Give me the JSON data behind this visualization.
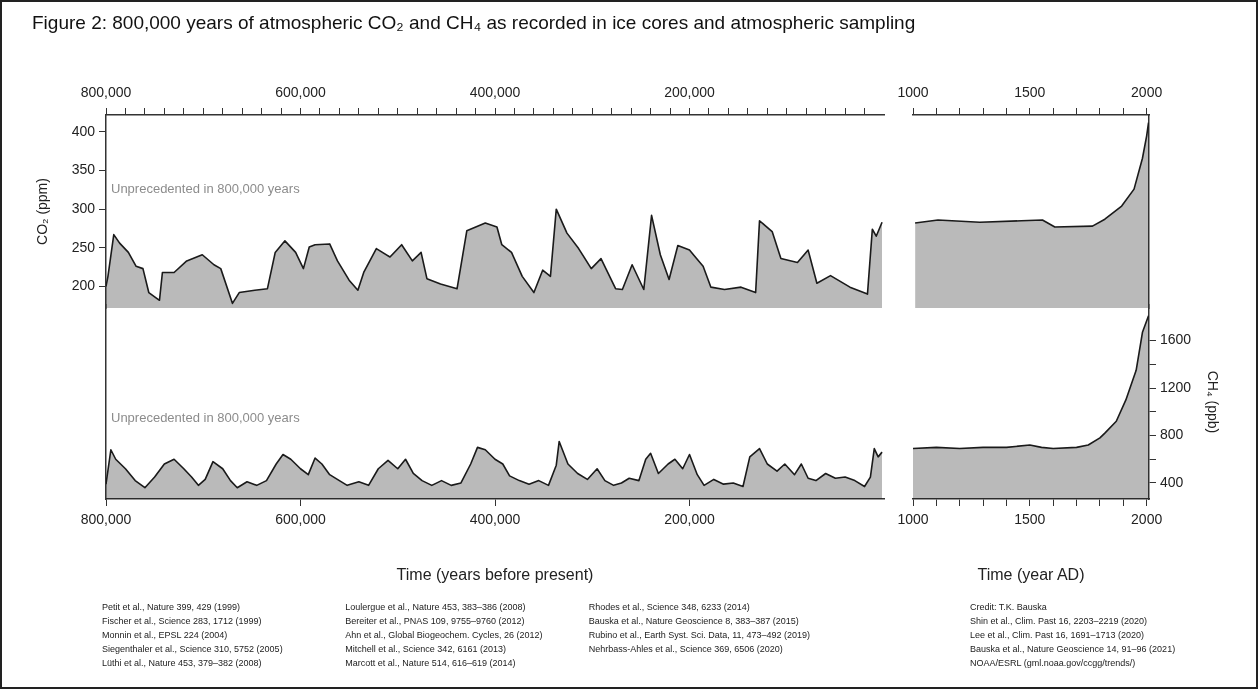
{
  "chart_data": [
    {
      "type": "area",
      "title": "Figure 2: 800,000 years of atmospheric CO₂ and CH₄ as recorded in ice cores and atmospheric sampling",
      "ylabel": "CO₂ (ppm)",
      "xlim": [
        800000,
        0
      ],
      "ylim": [
        172,
        422
      ],
      "xticks": [
        {
          "value": 800000,
          "label": "800,000"
        },
        {
          "value": 780000,
          "label": null
        },
        {
          "value": 760000,
          "label": null
        },
        {
          "value": 740000,
          "label": null
        },
        {
          "value": 720000,
          "label": null
        },
        {
          "value": 700000,
          "label": null
        },
        {
          "value": 680000,
          "label": null
        },
        {
          "value": 660000,
          "label": null
        },
        {
          "value": 640000,
          "label": null
        },
        {
          "value": 620000,
          "label": null
        },
        {
          "value": 600000,
          "label": "600,000"
        },
        {
          "value": 580000,
          "label": null
        },
        {
          "value": 560000,
          "label": null
        },
        {
          "value": 540000,
          "label": null
        },
        {
          "value": 520000,
          "label": null
        },
        {
          "value": 500000,
          "label": null
        },
        {
          "value": 480000,
          "label": null
        },
        {
          "value": 460000,
          "label": null
        },
        {
          "value": 440000,
          "label": null
        },
        {
          "value": 420000,
          "label": null
        },
        {
          "value": 400000,
          "label": "400,000"
        },
        {
          "value": 380000,
          "label": null
        },
        {
          "value": 360000,
          "label": null
        },
        {
          "value": 340000,
          "label": null
        },
        {
          "value": 320000,
          "label": null
        },
        {
          "value": 300000,
          "label": null
        },
        {
          "value": 280000,
          "label": null
        },
        {
          "value": 260000,
          "label": null
        },
        {
          "value": 240000,
          "label": null
        },
        {
          "value": 220000,
          "label": null
        },
        {
          "value": 200000,
          "label": "200,000"
        },
        {
          "value": 180000,
          "label": null
        },
        {
          "value": 160000,
          "label": null
        },
        {
          "value": 140000,
          "label": null
        },
        {
          "value": 120000,
          "label": null
        },
        {
          "value": 100000,
          "label": null
        },
        {
          "value": 80000,
          "label": null
        },
        {
          "value": 60000,
          "label": null
        },
        {
          "value": 40000,
          "label": null
        },
        {
          "value": 20000,
          "label": null
        }
      ],
      "yticks": [
        200,
        250,
        300,
        350,
        400
      ],
      "annotations": [
        "Unprecedented in 800,000 years"
      ],
      "series": [
        {
          "color": "#1a1a1a",
          "x": [
            800000,
            798000,
            792000,
            786000,
            777000,
            769000,
            762000,
            756000,
            745000,
            742000,
            730000,
            717000,
            701000,
            689000,
            682000,
            670000,
            663000,
            647000,
            634000,
            626000,
            616000,
            605000,
            597000,
            591000,
            585000,
            570000,
            562000,
            550000,
            541000,
            535000,
            522000,
            508000,
            496000,
            485000,
            476000,
            470000,
            456000,
            439000,
            429000,
            410000,
            398000,
            393000,
            383000,
            372000,
            360000,
            351000,
            343000,
            337000,
            326000,
            314000,
            301000,
            291000,
            276000,
            269000,
            259000,
            247000,
            239000,
            230000,
            221000,
            212000,
            200000,
            186000,
            178000,
            164000,
            147000,
            132000,
            128000,
            115000,
            106000,
            89000,
            78000,
            69000,
            55000,
            35000,
            17000,
            12000,
            8000,
            2000
          ],
          "values": [
            200,
            213,
            267,
            256,
            244,
            226,
            223,
            192,
            182,
            218,
            218,
            233,
            241,
            228,
            223,
            178,
            192,
            195,
            197,
            244,
            259,
            244,
            223,
            251,
            254,
            255,
            233,
            208,
            195,
            218,
            249,
            238,
            254,
            233,
            244,
            210,
            203,
            197,
            272,
            282,
            277,
            254,
            244,
            213,
            192,
            221,
            213,
            300,
            269,
            249,
            223,
            236,
            197,
            196,
            228,
            196,
            292,
            241,
            209,
            253,
            247,
            226,
            199,
            196,
            199,
            192,
            285,
            271,
            236,
            231,
            247,
            204,
            214,
            199,
            190,
            274,
            265,
            283
          ]
        }
      ]
    },
    {
      "type": "area",
      "tick_labels": "x",
      "xlim": [
        1000,
        2010
      ],
      "ylim": [
        172,
        422
      ],
      "xticks": [
        1000,
        {
          "value": 1100,
          "label": null
        },
        {
          "value": 1200,
          "label": null
        },
        {
          "value": 1300,
          "label": null
        },
        {
          "value": 1400,
          "label": null
        },
        1500,
        {
          "value": 1600,
          "label": null
        },
        {
          "value": 1700,
          "label": null
        },
        {
          "value": 1800,
          "label": null
        },
        {
          "value": 1900,
          "label": null
        },
        2000
      ],
      "series": [
        {
          "color": "#1a1a1a",
          "x": [
            1009,
            1107,
            1286,
            1464,
            1554,
            1607,
            1768,
            1821,
            1893,
            1946,
            1982,
            2000,
            2008
          ],
          "values": [
            282,
            286,
            283,
            285,
            286,
            277,
            278,
            287,
            304,
            326,
            366,
            395,
            412
          ]
        }
      ]
    },
    {
      "type": "area",
      "tick_labels": "x",
      "xlabel": "Time (years before present)",
      "xlim": [
        800000,
        0
      ],
      "ylim": [
        265,
        1900
      ],
      "xticks": [
        {
          "value": 800000,
          "label": "800,000"
        },
        {
          "value": 600000,
          "label": "600,000"
        },
        {
          "value": 400000,
          "label": "400,000"
        },
        {
          "value": 200000,
          "label": "200,000"
        }
      ],
      "annotations": [
        "Unprecedented in 800,000 years",
        "Petit et al., Nature 399, 429 (1999)",
        "Fischer et al., Science 283, 1712 (1999)",
        "Monnin et al., EPSL 224 (2004)",
        "Siegenthaler et al., Science 310, 5752 (2005)",
        "Lüthi et al., Nature 453, 379–382 (2008)",
        "Loulergue et al., Nature 453, 383–386 (2008)",
        "Bereiter et al., PNAS 109, 9755–9760 (2012)",
        "Ahn et al., Global Biogeochem. Cycles, 26 (2012)",
        "Mitchell et al., Science 342, 6161 (2013)",
        "Marcott et al., Nature 514, 616–619 (2014)",
        "Rhodes et al., Science 348, 6233 (2014)",
        "Bauska et al., Nature Geoscience 8, 383–387 (2015)",
        "Rubino et al., Earth Syst. Sci. Data, 11, 473–492 (2019)",
        "Nehrbass-Ahles et al., Science 369, 6506 (2020)"
      ],
      "series": [
        {
          "color": "#1a1a1a",
          "x": [
            800000,
            795000,
            790000,
            780000,
            770000,
            760000,
            750000,
            740000,
            730000,
            720000,
            712000,
            705000,
            698000,
            690000,
            680000,
            672000,
            665000,
            655000,
            645000,
            635000,
            625000,
            618000,
            610000,
            600000,
            592000,
            585000,
            578000,
            570000,
            560000,
            552000,
            540000,
            530000,
            520000,
            510000,
            500000,
            492000,
            484000,
            475000,
            465000,
            455000,
            445000,
            435000,
            425000,
            418000,
            410000,
            400000,
            392000,
            385000,
            375000,
            365000,
            355000,
            345000,
            337000,
            334000,
            325000,
            315000,
            305000,
            295000,
            287000,
            278000,
            270000,
            262000,
            252000,
            245000,
            240000,
            232000,
            222000,
            215000,
            207000,
            200000,
            192000,
            185000,
            175000,
            165000,
            155000,
            145000,
            138000,
            128000,
            120000,
            110000,
            102000,
            92000,
            85000,
            78000,
            70000,
            60000,
            50000,
            40000,
            30000,
            20000,
            14000,
            10000,
            6000,
            2000
          ],
          "values": [
            390,
            680,
            600,
            520,
            420,
            360,
            450,
            560,
            600,
            520,
            450,
            380,
            430,
            580,
            520,
            420,
            360,
            410,
            380,
            420,
            560,
            640,
            600,
            520,
            470,
            610,
            560,
            470,
            420,
            380,
            410,
            380,
            520,
            590,
            520,
            600,
            480,
            420,
            380,
            420,
            380,
            400,
            560,
            700,
            680,
            600,
            560,
            460,
            420,
            390,
            420,
            380,
            550,
            750,
            560,
            480,
            430,
            520,
            420,
            380,
            400,
            440,
            420,
            600,
            650,
            480,
            560,
            600,
            520,
            640,
            470,
            380,
            430,
            390,
            400,
            370,
            620,
            690,
            560,
            500,
            560,
            470,
            560,
            440,
            420,
            480,
            440,
            450,
            420,
            370,
            450,
            690,
            620,
            660
          ]
        }
      ]
    },
    {
      "type": "area",
      "ylabel": "CH₄ (ppb)",
      "xlabel": "Time (year AD)",
      "xlim": [
        1000,
        2010
      ],
      "ylim": [
        265,
        1900
      ],
      "xticks": [
        1000,
        {
          "value": 1100,
          "label": null
        },
        {
          "value": 1200,
          "label": null
        },
        {
          "value": 1300,
          "label": null
        },
        {
          "value": 1400,
          "label": null
        },
        1500,
        {
          "value": 1600,
          "label": null
        },
        {
          "value": 1700,
          "label": null
        },
        {
          "value": 1800,
          "label": null
        },
        {
          "value": 1900,
          "label": null
        },
        2000
      ],
      "yticks": [
        400,
        {
          "value": 600,
          "label": null
        },
        800,
        {
          "value": 1000,
          "label": null
        },
        1200,
        {
          "value": 1400,
          "label": null
        },
        1600
      ],
      "annotations": [
        "Credit: T.K. Bauska",
        "Shin et al., Clim. Past 16, 2203–2219 (2020)",
        "Lee et al., Clim. Past 16, 1691–1713 (2020)",
        "Bauska et al., Nature Geoscience 14, 91–96 (2021)",
        "NOAA/ESRL (gml.noaa.gov/ccgg/trends/)"
      ],
      "series": [
        {
          "color": "#1a1a1a",
          "x": [
            1000,
            1100,
            1200,
            1300,
            1400,
            1500,
            1550,
            1600,
            1700,
            1750,
            1800,
            1821,
            1870,
            1911,
            1955,
            1982,
            2008
          ],
          "values": [
            690,
            700,
            690,
            700,
            700,
            720,
            700,
            690,
            700,
            720,
            780,
            820,
            920,
            1100,
            1350,
            1670,
            1810
          ]
        }
      ]
    }
  ]
}
